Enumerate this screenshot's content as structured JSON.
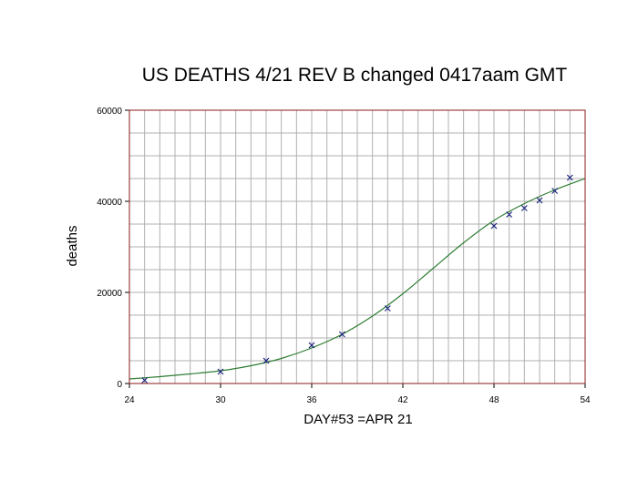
{
  "chart_data": {
    "type": "scatter",
    "title": "US DEATHS 4/21 REV B changed 0417aam GMT",
    "xlabel": "DAY#53 =APR 21",
    "ylabel": "deaths",
    "xlim": [
      24,
      54
    ],
    "ylim": [
      0,
      60000
    ],
    "x_ticks": [
      "24",
      "30",
      "36",
      "42",
      "48",
      "54"
    ],
    "y_ticks": [
      "0",
      "20000",
      "40000",
      "60000"
    ],
    "x_grid_step": 1,
    "y_grid_step": 5000,
    "grid": true,
    "legend": "none",
    "series": [
      {
        "kind": "points",
        "marker": "x",
        "color": "#1a237e",
        "x": [
          25,
          30,
          33,
          36,
          38,
          41,
          48,
          49,
          50,
          51,
          52,
          53
        ],
        "y": [
          700,
          2600,
          5000,
          8400,
          10800,
          16500,
          34600,
          37100,
          38500,
          40200,
          42300,
          45200
        ]
      },
      {
        "kind": "line",
        "color": "#2e7d32",
        "x": [
          24,
          26,
          28,
          30,
          32,
          34,
          36,
          38,
          40,
          42,
          44,
          46,
          48,
          50,
          52,
          54
        ],
        "y": [
          1000,
          1500,
          2100,
          2800,
          3900,
          5500,
          7800,
          10800,
          14800,
          19700,
          25300,
          30900,
          35800,
          39500,
          42500,
          45000
        ]
      }
    ],
    "colors": {
      "frame": "#8b1a1a",
      "grid": "#b0b0b0"
    }
  }
}
